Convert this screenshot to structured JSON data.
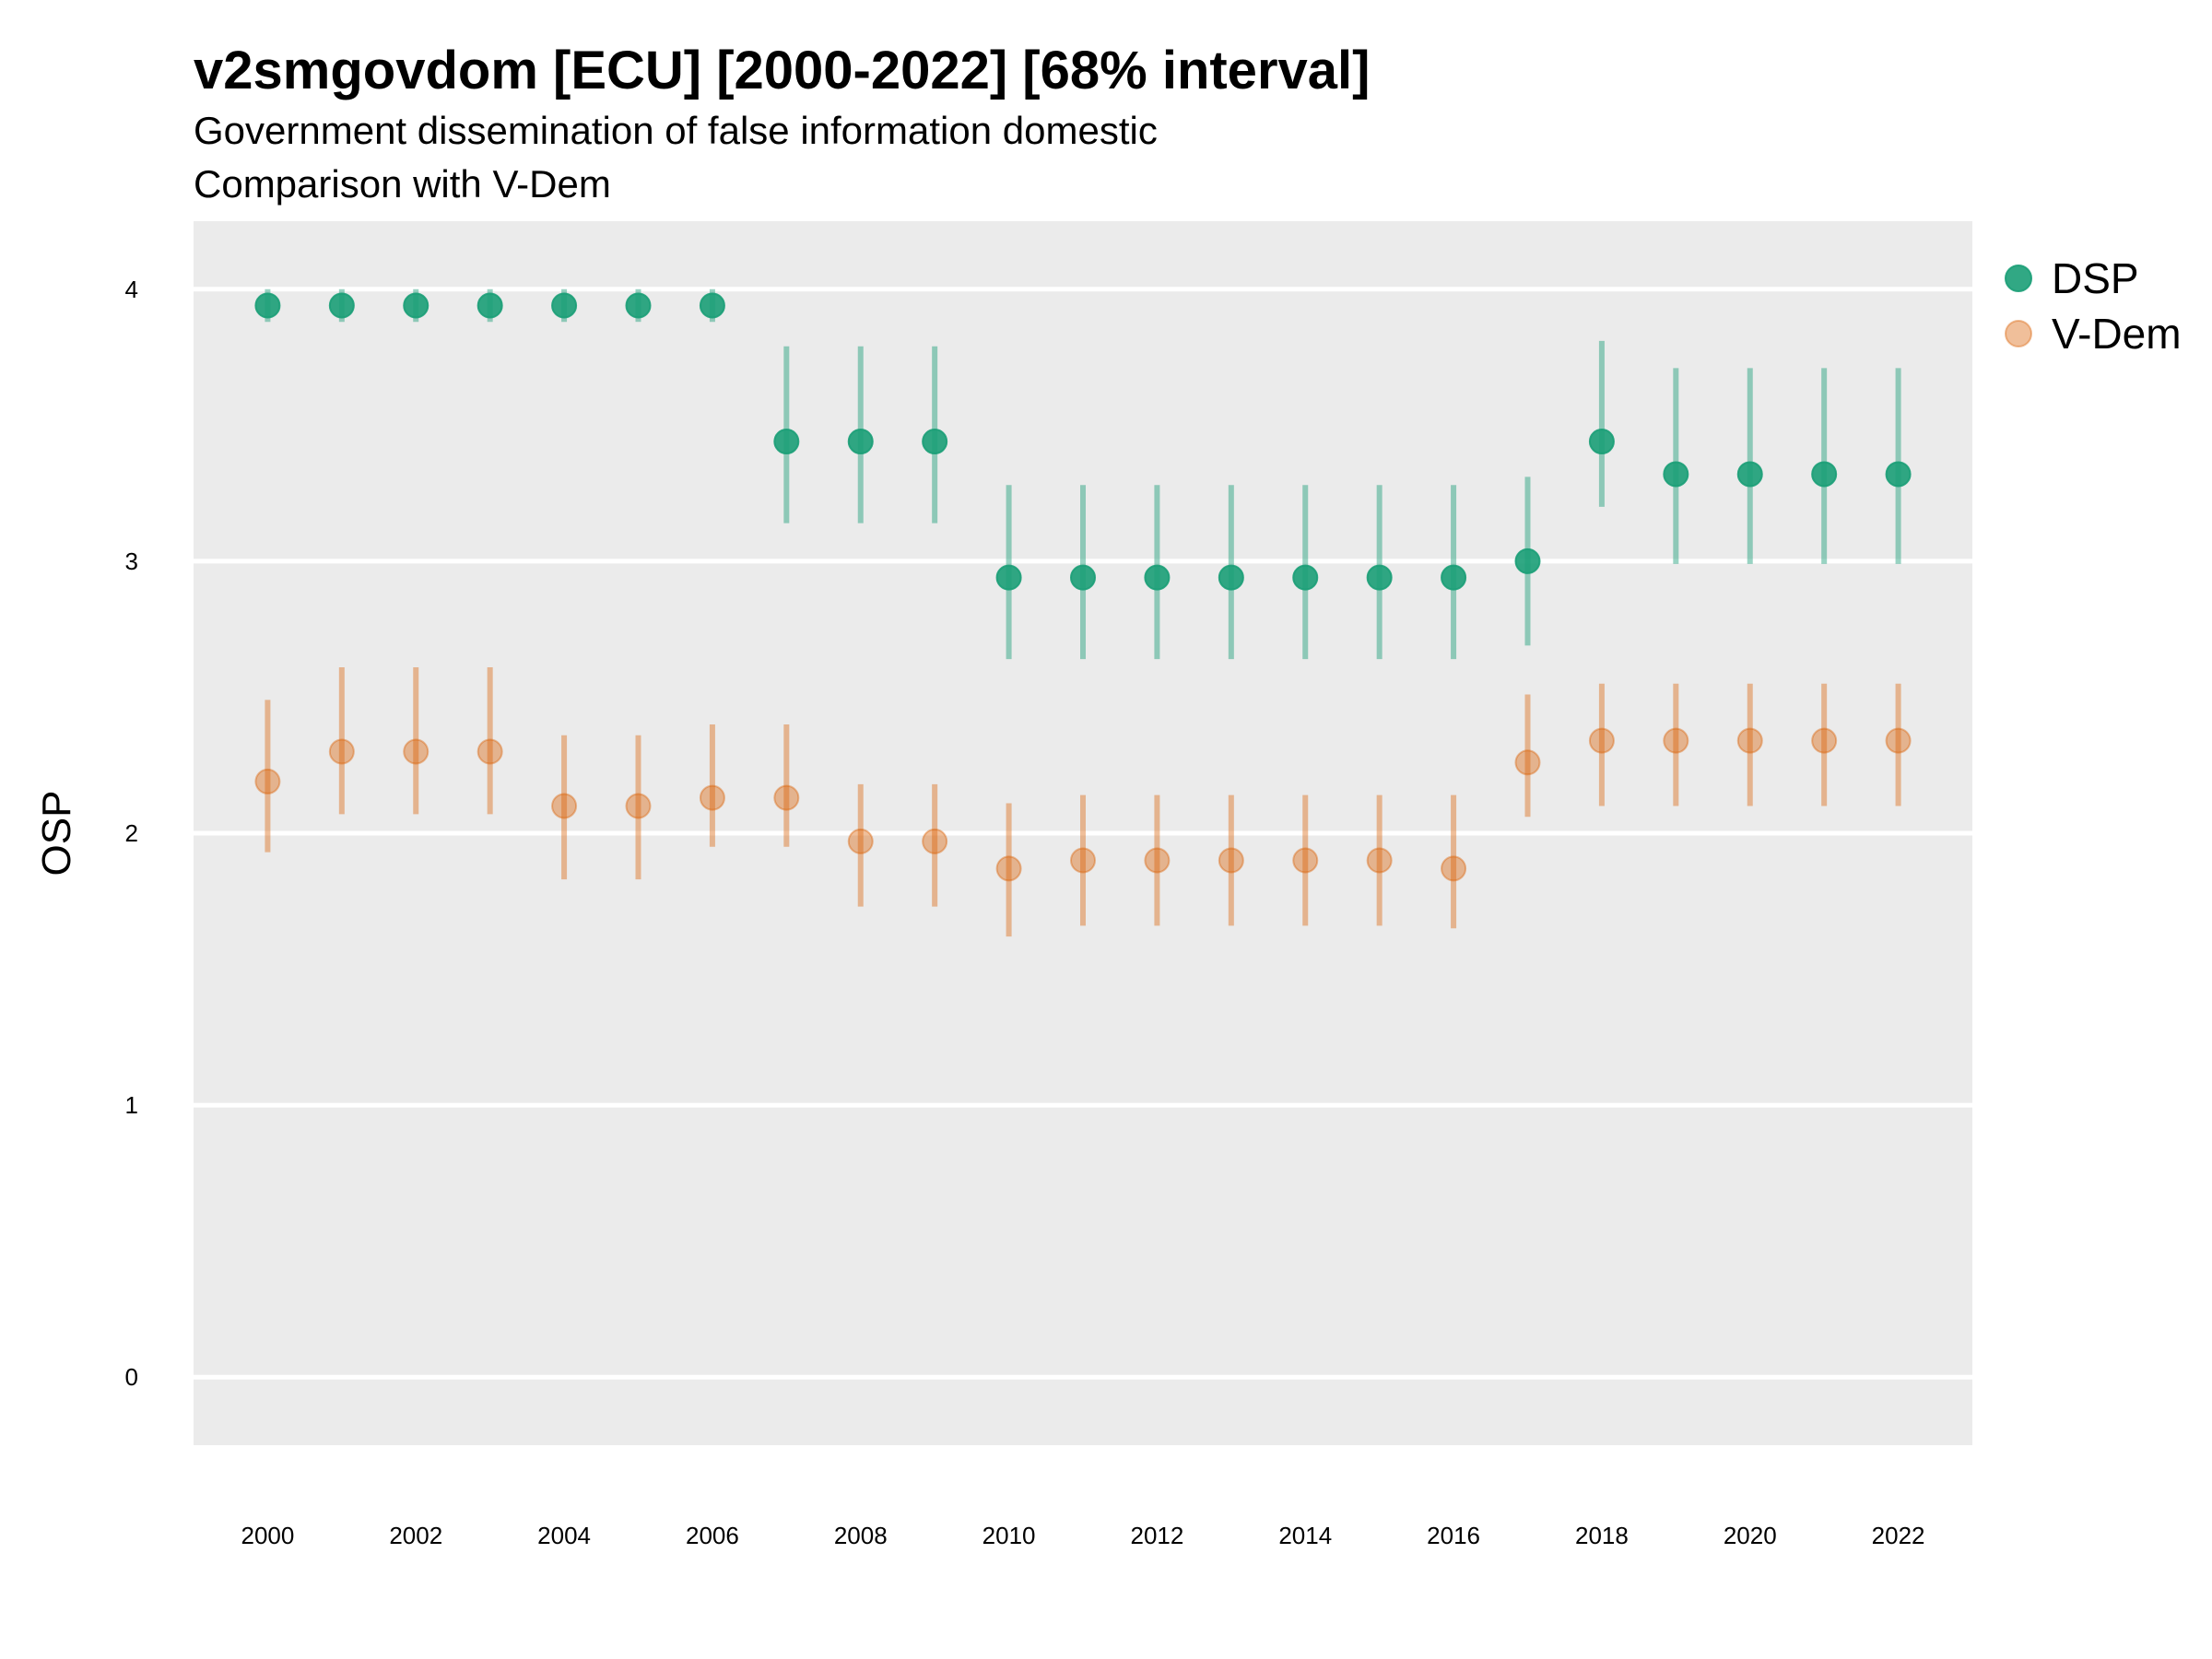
{
  "chart_data": {
    "type": "scatter",
    "title": "v2smgovdom [ECU] [2000-2022] [68% interval]",
    "subtitle_lines": [
      "Government dissemination of false information domestic",
      "Comparison with V-Dem"
    ],
    "xlabel": "",
    "ylabel": "OSP",
    "xlim": [
      1999,
      2023
    ],
    "ylim": [
      -0.25,
      4.25
    ],
    "x_ticks": [
      2000,
      2002,
      2004,
      2006,
      2008,
      2010,
      2012,
      2014,
      2016,
      2018,
      2020,
      2022
    ],
    "y_ticks": [
      0,
      1,
      2,
      3,
      4
    ],
    "grid": "horizontal",
    "legend_position": "right",
    "x": [
      2000,
      2001,
      2002,
      2003,
      2004,
      2005,
      2006,
      2007,
      2008,
      2009,
      2010,
      2011,
      2012,
      2013,
      2014,
      2015,
      2016,
      2017,
      2018,
      2019,
      2020,
      2021,
      2022
    ],
    "series": [
      {
        "name": "DSP",
        "color": "#1b9e77",
        "opacity": 0.9,
        "interval_opacity": 0.45,
        "values": [
          3.94,
          3.94,
          3.94,
          3.94,
          3.94,
          3.94,
          3.94,
          3.44,
          3.44,
          3.44,
          2.94,
          2.94,
          2.94,
          2.94,
          2.94,
          2.94,
          2.94,
          3.0,
          3.44,
          3.32,
          3.32,
          3.32,
          3.32
        ],
        "lower": [
          3.88,
          3.88,
          3.88,
          3.88,
          3.88,
          3.88,
          3.88,
          3.14,
          3.14,
          3.14,
          2.64,
          2.64,
          2.64,
          2.64,
          2.64,
          2.64,
          2.64,
          2.69,
          3.2,
          2.99,
          2.99,
          2.99,
          2.99
        ],
        "upper": [
          4.0,
          4.0,
          4.0,
          4.0,
          4.0,
          4.0,
          4.0,
          3.79,
          3.79,
          3.79,
          3.28,
          3.28,
          3.28,
          3.28,
          3.28,
          3.28,
          3.28,
          3.31,
          3.81,
          3.71,
          3.71,
          3.71,
          3.71
        ]
      },
      {
        "name": "V-Dem",
        "color": "#d95f02",
        "opacity": 0.4,
        "interval_opacity": 0.4,
        "values": [
          2.19,
          2.3,
          2.3,
          2.3,
          2.1,
          2.1,
          2.13,
          2.13,
          1.97,
          1.97,
          1.87,
          1.9,
          1.9,
          1.9,
          1.9,
          1.9,
          1.87,
          2.26,
          2.34,
          2.34,
          2.34,
          2.34,
          2.34
        ],
        "lower": [
          1.93,
          2.07,
          2.07,
          2.07,
          1.83,
          1.83,
          1.95,
          1.95,
          1.73,
          1.73,
          1.62,
          1.66,
          1.66,
          1.66,
          1.66,
          1.66,
          1.65,
          2.06,
          2.1,
          2.1,
          2.1,
          2.1,
          2.1
        ],
        "upper": [
          2.49,
          2.61,
          2.61,
          2.61,
          2.36,
          2.36,
          2.4,
          2.4,
          2.18,
          2.18,
          2.11,
          2.14,
          2.14,
          2.14,
          2.14,
          2.14,
          2.14,
          2.51,
          2.55,
          2.55,
          2.55,
          2.55,
          2.55
        ]
      }
    ]
  }
}
